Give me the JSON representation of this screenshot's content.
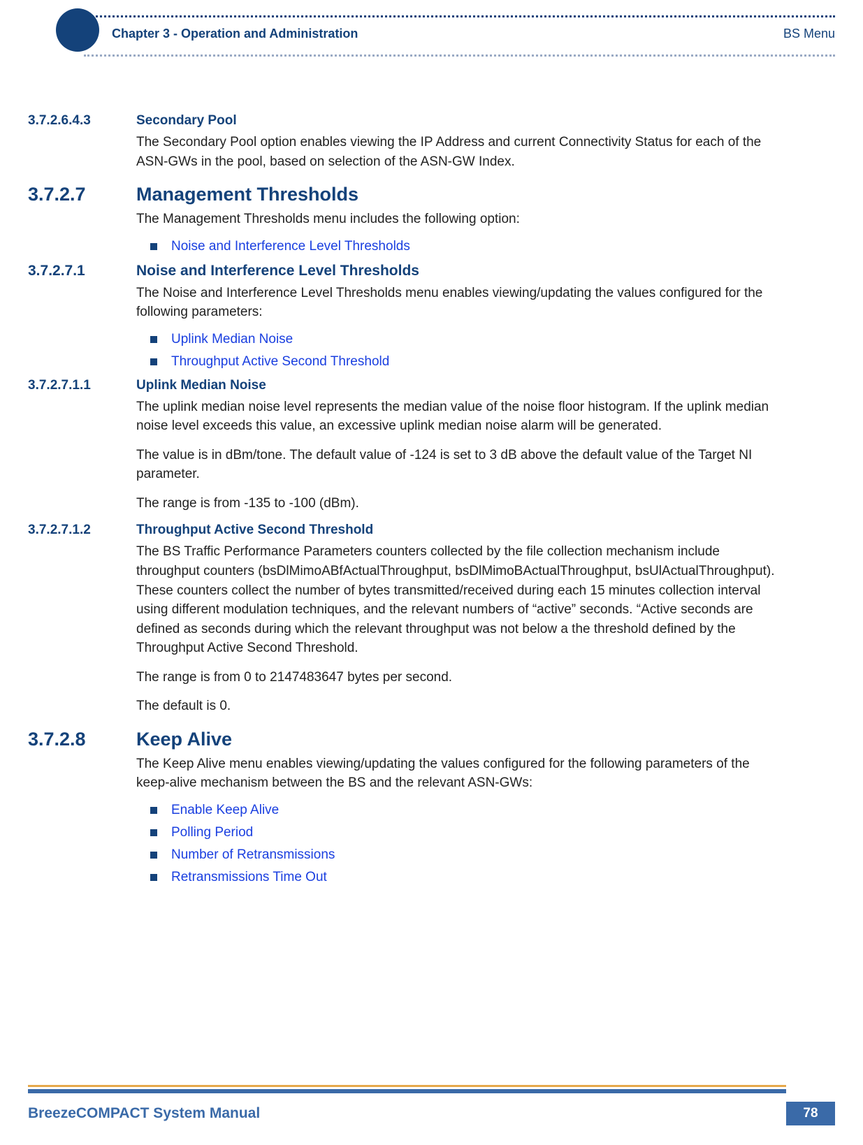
{
  "colors": {
    "brand": "#14427a",
    "brand_light": "#3a6aa8",
    "link": "#1a3fe0",
    "bullet": "#14427a",
    "dot_top": "#14427a",
    "dot_bot": "#9aaac4",
    "footer_bar1": "#e5a84a",
    "footer_bar2": "#3a6aa8",
    "pagebox_bg": "#3a6aa8"
  },
  "header": {
    "chapter": "Chapter 3 - Operation and Administration",
    "right": "BS Menu"
  },
  "footer": {
    "title": "BreezeCOMPACT System Manual",
    "page": "78"
  },
  "s1": {
    "num": "3.7.2.6.4.3",
    "title": "Secondary Pool",
    "p1": "The Secondary Pool option enables viewing the IP Address and current Connectivity Status for each of the ASN-GWs in the pool, based on selection of the ASN-GW Index."
  },
  "s2": {
    "num": "3.7.2.7",
    "title": "Management Thresholds",
    "p1": "The Management Thresholds menu includes the following option:",
    "items": {
      "a": "Noise and Interference Level Thresholds"
    }
  },
  "s3": {
    "num": "3.7.2.7.1",
    "title": "Noise and Interference Level Thresholds",
    "p1": "The Noise and Interference Level Thresholds menu enables viewing/updating the values configured for the following parameters:",
    "items": {
      "a": "Uplink Median Noise",
      "b": "Throughput Active Second Threshold"
    }
  },
  "s4": {
    "num": "3.7.2.7.1.1",
    "title": "Uplink Median Noise",
    "p1": "The uplink median noise level represents the median value of the noise floor histogram. If the uplink median noise level exceeds this value, an excessive uplink median noise alarm will be generated.",
    "p2": "The value is in dBm/tone. The default value of -124 is set to 3 dB above the default value of the Target NI parameter.",
    "p3": "The range is from -135 to -100 (dBm)."
  },
  "s5": {
    "num": "3.7.2.7.1.2",
    "title": "Throughput Active Second Threshold",
    "p1": "The BS Traffic Performance Parameters counters collected by the file collection mechanism include throughput counters (bsDlMimoABfActualThroughput, bsDlMimoBActualThroughput, bsUlActualThroughput). These counters collect the number of bytes transmitted/received during each 15 minutes collection interval using different modulation techniques, and the relevant numbers of “active” seconds. “Active seconds are defined as seconds during which the relevant throughput was not below a the threshold defined by the Throughput Active Second Threshold.",
    "p2": "The range is from 0 to 2147483647 bytes per second.",
    "p3": "The default is 0."
  },
  "s6": {
    "num": "3.7.2.8",
    "title": "Keep Alive",
    "p1": "The Keep Alive menu enables viewing/updating the values configured for the following parameters of the keep-alive mechanism between the BS and the relevant ASN-GWs:",
    "items": {
      "a": "Enable Keep Alive",
      "b": "Polling Period",
      "c": "Number of Retransmissions",
      "d": "Retransmissions Time Out"
    }
  }
}
